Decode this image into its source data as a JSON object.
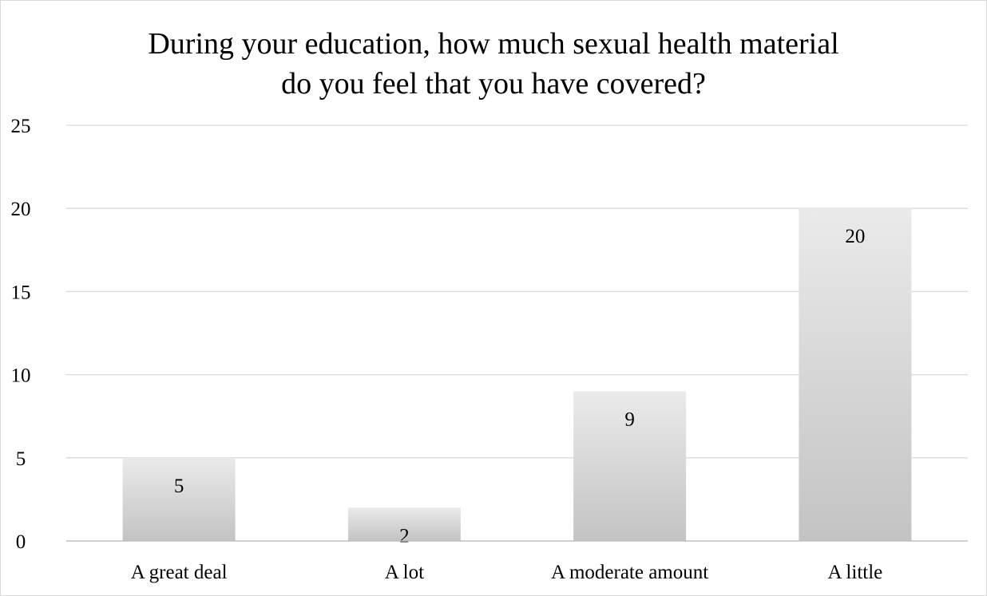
{
  "chart_data": {
    "type": "bar",
    "title_lines": [
      "During your education, how much sexual health material",
      "do you feel that you have covered?"
    ],
    "categories": [
      "A great deal",
      "A lot",
      "A moderate amount",
      "A little"
    ],
    "values": [
      5,
      2,
      9,
      20
    ],
    "data_labels": [
      "5",
      "2",
      "9",
      "20"
    ],
    "ylim": [
      0,
      25
    ],
    "yticks": [
      0,
      5,
      10,
      15,
      20,
      25
    ],
    "xlabel": "",
    "ylabel": "",
    "grid": true,
    "legend": "none",
    "colors": {
      "bar_top": "#eaeaea",
      "bar_bottom": "#c3c3c3",
      "gridline": "#d9d9d9",
      "axis": "#bfbfbf"
    }
  }
}
